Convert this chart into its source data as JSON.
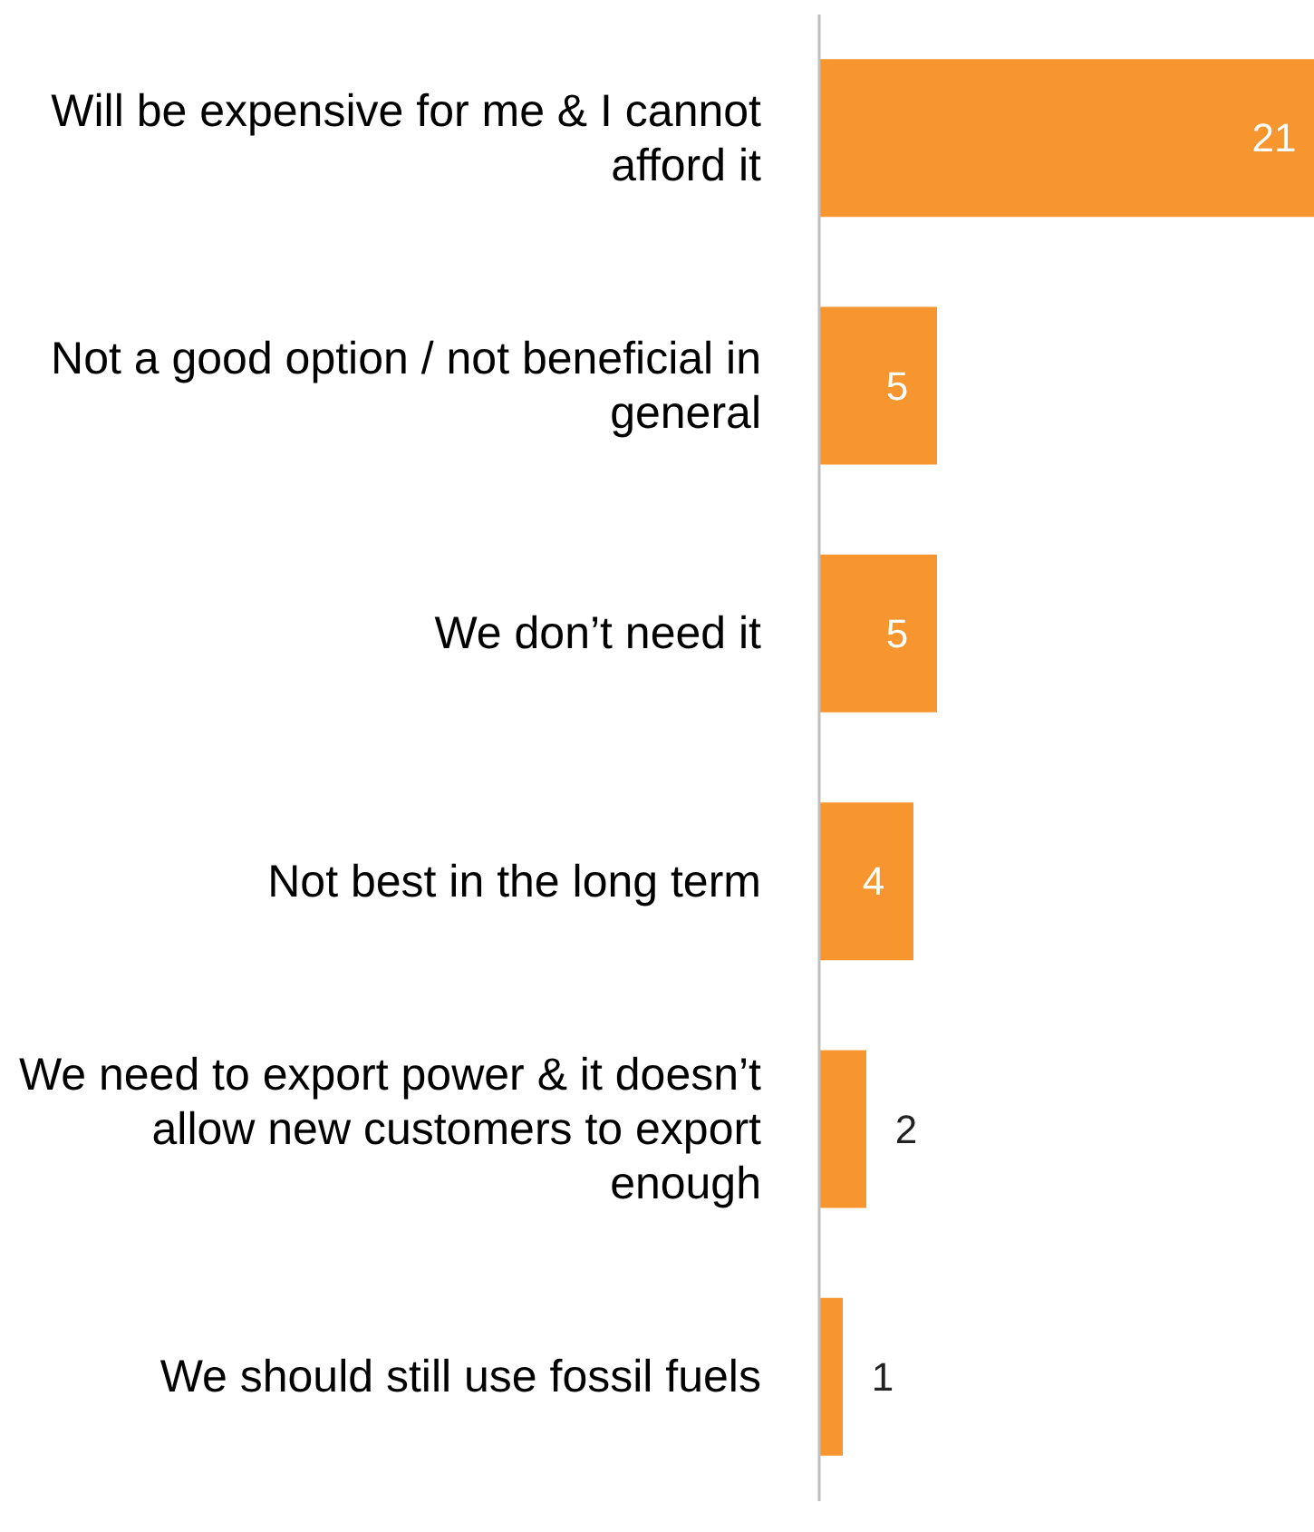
{
  "chart_data": {
    "type": "bar",
    "orientation": "horizontal",
    "categories": [
      "Will be expensive for me & I cannot afford it",
      "Not a good option / not beneficial in general",
      "We don’t need it",
      "Not best in the long term",
      "We need to export power & it doesn’t allow new customers to export enough",
      "We should still use fossil fuels"
    ],
    "values": [
      21,
      5,
      5,
      4,
      2,
      1
    ],
    "color": "#f7952f",
    "data_labels": true
  }
}
